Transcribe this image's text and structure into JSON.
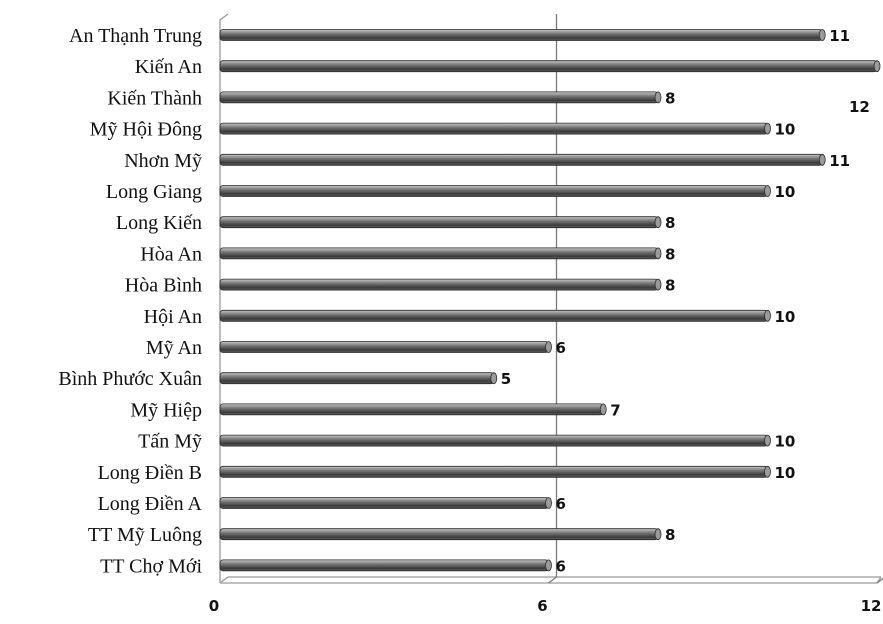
{
  "chart_data": {
    "type": "bar",
    "orientation": "horizontal",
    "categories": [
      "An Thạnh Trung",
      "Kiến An",
      "Kiến Thành",
      "Mỹ Hội Đông",
      "Nhơn Mỹ",
      "Long Giang",
      "Long Kiến",
      "Hòa An",
      "Hòa Bình",
      "Hội An",
      "Mỹ An",
      "Bình Phước Xuân",
      "Mỹ Hiệp",
      "Tấn Mỹ",
      "Long Điền B",
      "Long Điền A",
      "TT Mỹ Luông",
      "TT Chợ Mới"
    ],
    "values": [
      11,
      12,
      8,
      10,
      11,
      10,
      8,
      8,
      8,
      10,
      6,
      5,
      7,
      10,
      10,
      6,
      8,
      6
    ],
    "x_ticks": [
      "0",
      "6",
      "12"
    ],
    "xlim": [
      0,
      12
    ],
    "grid": true,
    "bar_color": "#6e6e6e",
    "title": "",
    "xlabel": "",
    "ylabel": ""
  }
}
